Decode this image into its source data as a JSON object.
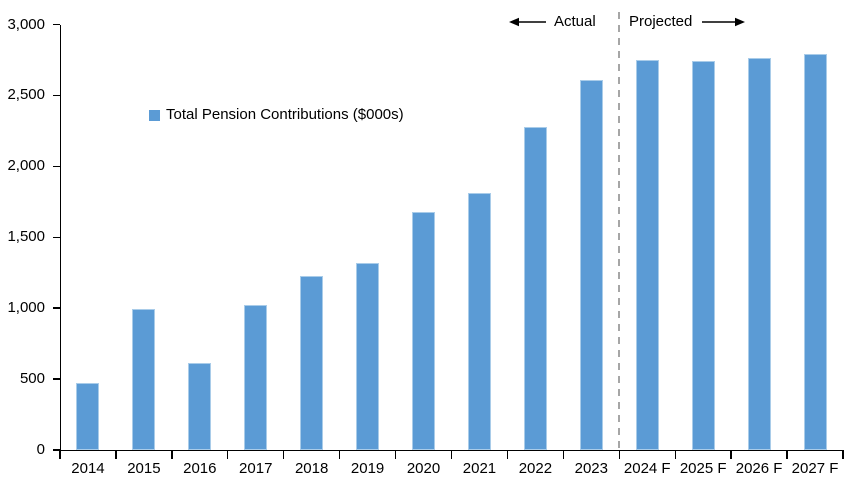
{
  "annotations": {
    "actual_label": "Actual",
    "projected_label": "Projected"
  },
  "legend": {
    "label": "Total Pension Contributions ($000s)"
  },
  "chart_data": {
    "type": "bar",
    "title": "",
    "xlabel": "",
    "ylabel": "",
    "series_name": "Total Pension Contributions ($000s)",
    "categories": [
      "2014",
      "2015",
      "2016",
      "2017",
      "2018",
      "2019",
      "2020",
      "2021",
      "2022",
      "2023",
      "2024 F",
      "2025 F",
      "2026 F",
      "2027 F"
    ],
    "values": [
      470,
      995,
      610,
      1020,
      1230,
      1320,
      1680,
      1815,
      2280,
      2610,
      2750,
      2740,
      2765,
      2790
    ],
    "ylim": [
      0,
      3000
    ],
    "ytick_interval": 500,
    "ytick_labels": [
      "0",
      "500",
      "1,000",
      "1,500",
      "2,000",
      "2,500",
      "3,000"
    ],
    "grid": false,
    "legend_position": "inside-upper-left",
    "actual_categories": [
      "2014",
      "2015",
      "2016",
      "2017",
      "2018",
      "2019",
      "2020",
      "2021",
      "2022",
      "2023"
    ],
    "projected_categories": [
      "2024 F",
      "2025 F",
      "2026 F",
      "2027 F"
    ],
    "divider_after_category": "2023"
  },
  "colors": {
    "bar_fill": "#5B9BD5",
    "bar_border": "#A9CCE9",
    "axis": "#000000",
    "divider": "#A6A6A6",
    "text": "#000000",
    "background": "#FFFFFF"
  }
}
